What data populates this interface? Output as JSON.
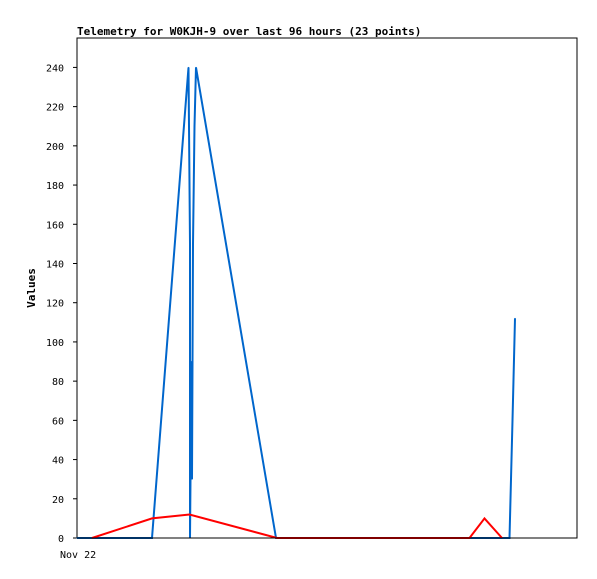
{
  "chart_data": {
    "type": "line",
    "title": "Telemetry for W0KJH-9 over last 96 hours (23 points)",
    "xlabel": "",
    "ylabel": "Values",
    "x_tick_labels": [
      "Nov 22"
    ],
    "x_range_hours": [
      0,
      100
    ],
    "ylim": [
      0,
      255
    ],
    "y_ticks": [
      0,
      20,
      40,
      60,
      80,
      100,
      120,
      140,
      160,
      180,
      200,
      220,
      240
    ],
    "grid": false,
    "legend": "none",
    "series": [
      {
        "color": "#0066cc",
        "points": [
          {
            "x": 0,
            "y": 0
          },
          {
            "x": 15,
            "y": 0
          },
          {
            "x": 22.3,
            "y": 240
          },
          {
            "x": 22.6,
            "y": 150
          },
          {
            "x": 22.6,
            "y": 0
          },
          {
            "x": 22.9,
            "y": 90
          },
          {
            "x": 23.0,
            "y": 30
          },
          {
            "x": 23.2,
            "y": 150
          },
          {
            "x": 23.5,
            "y": 210
          },
          {
            "x": 23.8,
            "y": 240
          },
          {
            "x": 39.8,
            "y": 0
          },
          {
            "x": 86.5,
            "y": 0
          },
          {
            "x": 87.1,
            "y": 60
          },
          {
            "x": 87.6,
            "y": 112
          }
        ]
      },
      {
        "color": "#ff0000",
        "points": [
          {
            "x": 3,
            "y": 0
          },
          {
            "x": 15,
            "y": 10
          },
          {
            "x": 22.5,
            "y": 12
          },
          {
            "x": 40,
            "y": 0
          },
          {
            "x": 78.5,
            "y": 0
          },
          {
            "x": 81.5,
            "y": 10
          },
          {
            "x": 85,
            "y": 0
          }
        ]
      }
    ]
  }
}
